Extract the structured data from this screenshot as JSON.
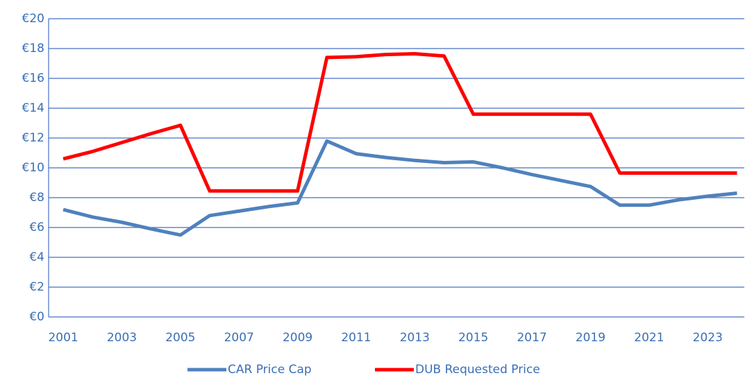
{
  "chart_data": {
    "type": "line",
    "x": [
      2001,
      2002,
      2003,
      2004,
      2005,
      2006,
      2007,
      2008,
      2009,
      2010,
      2011,
      2012,
      2013,
      2014,
      2015,
      2016,
      2017,
      2018,
      2019,
      2020,
      2021,
      2022,
      2023,
      2024
    ],
    "series": [
      {
        "name": "CAR Price Cap",
        "color": "#4f81bd",
        "values": [
          7.2,
          6.7,
          6.35,
          5.9,
          5.5,
          6.8,
          7.1,
          7.4,
          7.65,
          11.8,
          10.95,
          10.7,
          10.5,
          10.35,
          10.4,
          10.0,
          9.55,
          9.15,
          8.75,
          7.5,
          7.5,
          7.85,
          8.1,
          8.3
        ]
      },
      {
        "name": "DUB Requested Price",
        "color": "#ff0000",
        "values": [
          10.6,
          11.1,
          11.7,
          12.3,
          12.85,
          8.45,
          8.45,
          8.45,
          8.45,
          17.4,
          17.45,
          17.6,
          17.65,
          17.5,
          13.6,
          13.6,
          13.6,
          13.6,
          13.6,
          9.65,
          9.65,
          9.65,
          9.65,
          9.65
        ]
      }
    ],
    "xlim": [
      2000.5,
      2024.25
    ],
    "xticks": [
      2001,
      2003,
      2005,
      2007,
      2009,
      2011,
      2013,
      2015,
      2017,
      2019,
      2021,
      2023
    ],
    "ylim": [
      0,
      20
    ],
    "yticks": [
      {
        "value": 0,
        "label": "€0"
      },
      {
        "value": 2,
        "label": "€2"
      },
      {
        "value": 4,
        "label": "€4"
      },
      {
        "value": 6,
        "label": "€6"
      },
      {
        "value": 8,
        "label": "€8"
      },
      {
        "value": 10,
        "label": "€10"
      },
      {
        "value": 12,
        "label": "€12"
      },
      {
        "value": 14,
        "label": "€14"
      },
      {
        "value": 16,
        "label": "€16"
      },
      {
        "value": 18,
        "label": "€18"
      },
      {
        "value": 20,
        "label": "€20"
      }
    ],
    "grid": true,
    "legend": "bottom"
  }
}
